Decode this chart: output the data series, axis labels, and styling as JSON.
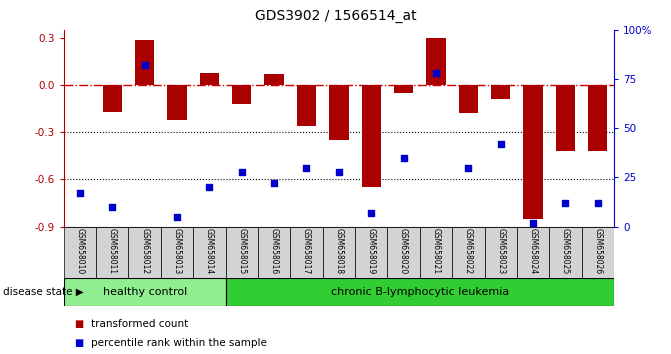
{
  "title": "GDS3902 / 1566514_at",
  "samples": [
    "GSM658010",
    "GSM658011",
    "GSM658012",
    "GSM658013",
    "GSM658014",
    "GSM658015",
    "GSM658016",
    "GSM658017",
    "GSM658018",
    "GSM658019",
    "GSM658020",
    "GSM658021",
    "GSM658022",
    "GSM658023",
    "GSM658024",
    "GSM658025",
    "GSM658026"
  ],
  "bar_values": [
    0.0,
    -0.17,
    0.29,
    -0.22,
    0.08,
    -0.12,
    0.07,
    -0.26,
    -0.35,
    -0.65,
    -0.05,
    0.3,
    -0.18,
    -0.09,
    -0.85,
    -0.42,
    -0.42
  ],
  "dot_values": [
    17,
    10,
    82,
    5,
    20,
    28,
    22,
    30,
    28,
    7,
    35,
    78,
    30,
    42,
    2,
    12,
    12
  ],
  "healthy_count": 5,
  "bar_color": "#aa0000",
  "dot_color": "#0000cc",
  "background_color": "#ffffff",
  "ylim_left": [
    -0.9,
    0.35
  ],
  "ylim_right": [
    0,
    100
  ],
  "yticks_left": [
    -0.9,
    -0.6,
    -0.3,
    0.0,
    0.3
  ],
  "yticks_right": [
    0,
    25,
    50,
    75,
    100
  ],
  "ytick_labels_right": [
    "0",
    "25",
    "50",
    "75",
    "100%"
  ],
  "healthy_label": "healthy control",
  "disease_label": "chronic B-lymphocytic leukemia",
  "legend_bar": "transformed count",
  "legend_dot": "percentile rank within the sample",
  "disease_state_label": "disease state",
  "healthy_bg": "#90ee90",
  "disease_bg": "#32cd32",
  "dashed_line_color": "#cc0000",
  "label_bg": "#d3d3d3"
}
